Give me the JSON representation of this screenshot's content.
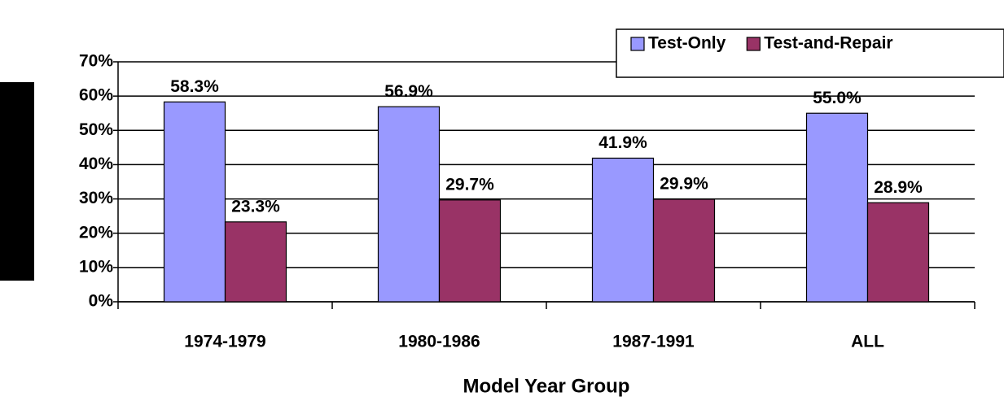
{
  "chart_data": {
    "type": "bar",
    "x_label": "Model Year Group",
    "categories": [
      "1974-1979",
      "1980-1986",
      "1987-1991",
      "ALL"
    ],
    "series": [
      {
        "name": "Test-Only",
        "color": "#9999ff",
        "values": [
          58.3,
          56.9,
          41.9,
          55.0
        ],
        "value_labels": [
          "58.3%",
          "56.9%",
          "41.9%",
          "55.0%"
        ]
      },
      {
        "name": "Test-and-Repair",
        "color": "#993366",
        "values": [
          23.3,
          29.7,
          29.9,
          28.9
        ],
        "value_labels": [
          "23.3%",
          "29.7%",
          "29.9%",
          "28.9%"
        ]
      }
    ],
    "ylim": [
      0,
      70
    ],
    "yticks": [
      {
        "value": 0,
        "label": "0%"
      },
      {
        "value": 10,
        "label": "10%"
      },
      {
        "value": 20,
        "label": "20%"
      },
      {
        "value": 30,
        "label": "30%"
      },
      {
        "value": 40,
        "label": "40%"
      },
      {
        "value": 50,
        "label": "50%"
      },
      {
        "value": 60,
        "label": "60%"
      },
      {
        "value": 70,
        "label": "70%"
      }
    ],
    "grid": true,
    "legend": "top-right"
  }
}
